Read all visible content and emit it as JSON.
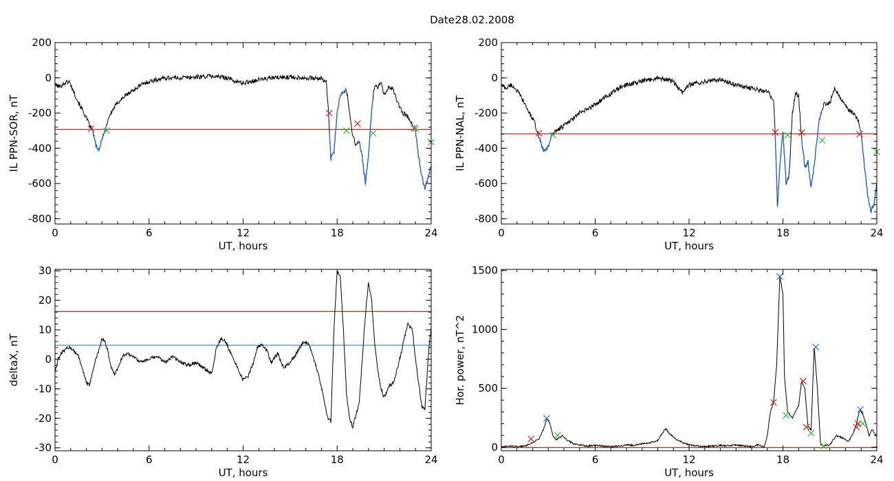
{
  "header": {
    "date_label": "Date:",
    "date_value": "28.02.2008"
  },
  "colors": {
    "signal": "#000000",
    "substorm": "#1f5fd6",
    "threshold_red": "#d62222",
    "threshold_blue": "#2a8fd6",
    "marker_red": "#d62222",
    "marker_green": "#2fbf2f",
    "marker_blue": "#2a6fe0"
  },
  "chart_data": [
    {
      "type": "line",
      "id": "il-sor",
      "xlabel": "UT, hours",
      "ylabel": "IL PPN-SOR, nT",
      "xlim": [
        0,
        24
      ],
      "ylim": [
        -830,
        200
      ],
      "xticks": [
        0,
        6,
        12,
        18,
        24
      ],
      "yticks": [
        -800,
        -600,
        -400,
        -200,
        0,
        200
      ],
      "xtick_labels": [
        "0",
        "6",
        "12",
        "18",
        "24"
      ],
      "ytick_labels": [
        "-800",
        "-600",
        "-400",
        "-200",
        "0",
        "200"
      ],
      "series": [
        {
          "x": [
            0,
            0.3,
            0.6,
            0.9,
            1.2,
            1.5,
            1.8,
            2.1,
            2.4,
            2.6,
            2.8,
            3.0,
            3.2,
            3.4,
            3.7,
            4.0,
            4.5,
            5.0,
            5.5,
            6.0,
            6.5,
            7.0,
            8.0,
            9.0,
            10.0,
            11.0,
            11.5,
            12.0,
            12.5,
            13.0,
            14.0,
            15.0,
            16.0,
            17.0,
            17.3,
            17.45,
            17.6,
            17.8,
            18.0,
            18.2,
            18.4,
            18.6,
            18.8,
            19.0,
            19.2,
            19.4,
            19.6,
            19.8,
            20.0,
            20.2,
            20.4,
            20.6,
            20.8,
            21.0,
            21.3,
            21.6,
            21.9,
            22.2,
            22.5,
            22.8,
            23.0,
            23.2,
            23.4,
            23.6,
            23.8,
            24.0
          ],
          "values": [
            -40,
            -50,
            -30,
            -20,
            -80,
            -140,
            -190,
            -250,
            -300,
            -380,
            -420,
            -340,
            -300,
            -230,
            -180,
            -140,
            -100,
            -70,
            -40,
            -20,
            -10,
            0,
            0,
            5,
            10,
            0,
            -20,
            -30,
            -20,
            -10,
            0,
            5,
            0,
            -5,
            -20,
            -200,
            -460,
            -420,
            -200,
            -100,
            -80,
            -70,
            -200,
            -330,
            -380,
            -360,
            -450,
            -600,
            -450,
            -180,
            -40,
            -50,
            -30,
            -100,
            -50,
            -70,
            -150,
            -200,
            -220,
            -260,
            -300,
            -450,
            -560,
            -630,
            -560,
            -500
          ]
        }
      ],
      "threshold": {
        "value": -293,
        "color": "threshold_red"
      },
      "substorm_segments": [
        [
          2.3,
          3.3
        ],
        [
          17.5,
          18.6
        ],
        [
          19.3,
          20.3
        ],
        [
          22.9,
          24.0
        ]
      ],
      "markers": [
        {
          "x": 2.3,
          "y": -290,
          "color": "marker_red"
        },
        {
          "x": 3.3,
          "y": -300,
          "color": "marker_green"
        },
        {
          "x": 17.5,
          "y": -200,
          "color": "marker_red"
        },
        {
          "x": 18.6,
          "y": -300,
          "color": "marker_green"
        },
        {
          "x": 19.3,
          "y": -260,
          "color": "marker_red"
        },
        {
          "x": 20.3,
          "y": -315,
          "color": "marker_green"
        },
        {
          "x": 22.9,
          "y": -285,
          "color": "marker_red"
        },
        {
          "x": 23.0,
          "y": -290,
          "color": "marker_green"
        },
        {
          "x": 24.0,
          "y": -365,
          "color": "marker_green"
        }
      ]
    },
    {
      "type": "line",
      "id": "il-nal",
      "xlabel": "UT, hours",
      "ylabel": "IL PPN-NAL, nT",
      "xlim": [
        0,
        24
      ],
      "ylim": [
        -830,
        200
      ],
      "xticks": [
        0,
        6,
        12,
        18,
        24
      ],
      "yticks": [
        -800,
        -600,
        -400,
        -200,
        0,
        200
      ],
      "xtick_labels": [
        "0",
        "6",
        "12",
        "18",
        "24"
      ],
      "ytick_labels": [
        "-800",
        "-600",
        "-400",
        "-200",
        "0",
        "200"
      ],
      "series": [
        {
          "x": [
            0,
            0.3,
            0.6,
            0.9,
            1.2,
            1.5,
            1.8,
            2.1,
            2.4,
            2.7,
            3.0,
            3.2,
            3.5,
            4.0,
            4.5,
            5.0,
            5.5,
            6.0,
            6.5,
            7.0,
            7.5,
            8.0,
            8.5,
            9.0,
            9.5,
            10.0,
            10.5,
            11.0,
            11.3,
            11.6,
            12.0,
            13.0,
            14.0,
            15.0,
            16.0,
            17.0,
            17.4,
            17.5,
            17.65,
            17.8,
            18.0,
            18.2,
            18.4,
            18.6,
            18.8,
            19.0,
            19.2,
            19.4,
            19.6,
            19.8,
            20.0,
            20.3,
            20.6,
            21.0,
            21.3,
            21.6,
            21.9,
            22.2,
            22.5,
            22.8,
            23.0,
            23.2,
            23.4,
            23.6,
            23.8,
            24.0
          ],
          "values": [
            -40,
            -60,
            -40,
            -60,
            -100,
            -150,
            -200,
            -250,
            -330,
            -420,
            -390,
            -330,
            -300,
            -270,
            -240,
            -200,
            -180,
            -150,
            -120,
            -90,
            -60,
            -40,
            -30,
            -20,
            -10,
            0,
            -10,
            -20,
            -60,
            -80,
            -40,
            -20,
            -10,
            -40,
            -60,
            -80,
            -120,
            -300,
            -740,
            -500,
            -300,
            -600,
            -550,
            -200,
            -90,
            -100,
            -350,
            -500,
            -480,
            -620,
            -500,
            -250,
            -150,
            -140,
            -60,
            -100,
            -150,
            -180,
            -200,
            -240,
            -300,
            -500,
            -650,
            -760,
            -720,
            -600
          ]
        }
      ],
      "threshold": {
        "value": -318,
        "color": "threshold_red"
      },
      "substorm_segments": [
        [
          2.4,
          3.3
        ],
        [
          17.5,
          18.3
        ],
        [
          19.2,
          20.5
        ],
        [
          22.9,
          24.0
        ]
      ],
      "markers": [
        {
          "x": 2.4,
          "y": -315,
          "color": "marker_red"
        },
        {
          "x": 3.3,
          "y": -325,
          "color": "marker_green"
        },
        {
          "x": 17.5,
          "y": -310,
          "color": "marker_red"
        },
        {
          "x": 18.3,
          "y": -325,
          "color": "marker_green"
        },
        {
          "x": 19.2,
          "y": -310,
          "color": "marker_red"
        },
        {
          "x": 20.5,
          "y": -355,
          "color": "marker_green"
        },
        {
          "x": 22.9,
          "y": -320,
          "color": "marker_red"
        },
        {
          "x": 24.0,
          "y": -420,
          "color": "marker_green"
        }
      ]
    },
    {
      "type": "line",
      "id": "deltax",
      "xlabel": "UT, hours",
      "ylabel": "deltaX, nT",
      "xlim": [
        0,
        24
      ],
      "ylim": [
        -31,
        30.5
      ],
      "xticks": [
        0,
        6,
        12,
        18,
        24
      ],
      "yticks": [
        -30,
        -20,
        -10,
        0,
        10,
        20,
        30
      ],
      "xtick_labels": [
        "0",
        "6",
        "12",
        "18",
        "24"
      ],
      "ytick_labels": [
        "-30",
        "-20",
        "-10",
        "0",
        "10",
        "20",
        "30"
      ],
      "series": [
        {
          "x": [
            0,
            0.2,
            0.4,
            0.6,
            0.8,
            1.0,
            1.2,
            1.5,
            1.8,
            2.0,
            2.2,
            2.4,
            2.6,
            2.8,
            3.0,
            3.2,
            3.4,
            3.6,
            3.8,
            4.0,
            4.3,
            4.6,
            5.0,
            5.5,
            6.0,
            6.5,
            7.0,
            7.5,
            8.0,
            8.5,
            9.0,
            9.5,
            10.0,
            10.3,
            10.6,
            10.9,
            11.2,
            11.5,
            11.8,
            12.0,
            12.3,
            12.6,
            12.9,
            13.2,
            13.5,
            13.8,
            14.2,
            14.6,
            15.0,
            15.3,
            15.6,
            15.9,
            16.2,
            16.5,
            16.8,
            17.1,
            17.4,
            17.6,
            17.8,
            18.0,
            18.2,
            18.4,
            18.6,
            18.8,
            19.0,
            19.2,
            19.4,
            19.6,
            19.8,
            20.0,
            20.2,
            20.4,
            20.6,
            20.8,
            21.0,
            21.3,
            21.6,
            21.9,
            22.2,
            22.5,
            22.8,
            23.0,
            23.2,
            23.4,
            23.6,
            23.8,
            24.0
          ],
          "values": [
            -4,
            0,
            2,
            3,
            4,
            4,
            3,
            1,
            -4,
            -8,
            -9,
            -4,
            0,
            3,
            7,
            6,
            2,
            -3,
            -5,
            -3,
            1,
            2,
            1,
            -1,
            0,
            1,
            -1,
            1,
            -1,
            -2,
            -1,
            -3,
            -5,
            4,
            7,
            6,
            2,
            -1,
            -5,
            -7,
            -6,
            -2,
            4,
            5,
            3,
            -1,
            2,
            -3,
            -1,
            1,
            4,
            6,
            5,
            0,
            -5,
            -12,
            -20,
            -21,
            10,
            30,
            28,
            10,
            -12,
            -20,
            -23,
            -19,
            -15,
            0,
            15,
            26,
            20,
            5,
            -4,
            -10,
            -13,
            -9,
            -8,
            -2,
            5,
            12,
            10,
            0,
            -8,
            -16,
            -17,
            0,
            11
          ]
        }
      ],
      "thresholds": [
        {
          "value": 16.2,
          "color": "threshold_red"
        },
        {
          "value": 4.8,
          "color": "threshold_blue"
        }
      ]
    },
    {
      "type": "line",
      "id": "hor-power",
      "xlabel": "UT, hours",
      "ylabel": "Hor. power, nT^2",
      "xlim": [
        0,
        24
      ],
      "ylim": [
        -30,
        1510
      ],
      "xticks": [
        0,
        6,
        12,
        18,
        24
      ],
      "yticks": [
        0,
        500,
        1000,
        1500
      ],
      "xtick_labels": [
        "0",
        "6",
        "12",
        "18",
        "24"
      ],
      "ytick_labels": [
        "0",
        "500",
        "1000",
        "1500"
      ],
      "series": [
        {
          "x": [
            0,
            0.5,
            1.0,
            1.5,
            2.0,
            2.4,
            2.7,
            2.9,
            3.1,
            3.3,
            3.5,
            3.7,
            3.9,
            4.2,
            4.6,
            5.0,
            5.5,
            6.0,
            6.5,
            7.0,
            7.5,
            8.0,
            8.5,
            9.0,
            9.5,
            10.0,
            10.3,
            10.5,
            10.7,
            10.9,
            11.2,
            11.6,
            12.0,
            12.5,
            13.0,
            13.5,
            14.0,
            14.5,
            15.0,
            15.5,
            16.0,
            16.4,
            16.8,
            17.0,
            17.2,
            17.4,
            17.6,
            17.8,
            18.0,
            18.1,
            18.3,
            18.6,
            19.0,
            19.2,
            19.4,
            19.6,
            19.8,
            20.0,
            20.2,
            20.4,
            20.6,
            21.0,
            21.4,
            21.8,
            22.2,
            22.5,
            22.7,
            22.9,
            23.1,
            23.3,
            23.5,
            23.7,
            24.0
          ],
          "values": [
            0,
            10,
            5,
            10,
            40,
            70,
            150,
            245,
            200,
            100,
            60,
            80,
            100,
            60,
            30,
            20,
            10,
            15,
            10,
            5,
            10,
            20,
            15,
            30,
            40,
            60,
            120,
            160,
            120,
            100,
            60,
            40,
            20,
            10,
            5,
            10,
            15,
            10,
            20,
            10,
            5,
            20,
            0,
            100,
            300,
            380,
            700,
            1450,
            1300,
            600,
            300,
            250,
            350,
            560,
            500,
            180,
            150,
            850,
            500,
            30,
            10,
            20,
            100,
            80,
            50,
            120,
            200,
            320,
            280,
            200,
            100,
            150,
            90
          ]
        }
      ],
      "threshold": {
        "value": -3,
        "color": "threshold_red"
      },
      "markers": [
        {
          "x": 1.9,
          "y": 70,
          "color": "marker_red"
        },
        {
          "x": 2.9,
          "y": 245,
          "color": "marker_blue"
        },
        {
          "x": 3.6,
          "y": 100,
          "color": "marker_green"
        },
        {
          "x": 17.4,
          "y": 380,
          "color": "marker_red"
        },
        {
          "x": 17.8,
          "y": 1450,
          "color": "marker_blue"
        },
        {
          "x": 18.2,
          "y": 270,
          "color": "marker_green"
        },
        {
          "x": 19.3,
          "y": 560,
          "color": "marker_red"
        },
        {
          "x": 19.5,
          "y": 170,
          "color": "marker_red"
        },
        {
          "x": 19.8,
          "y": 120,
          "color": "marker_green"
        },
        {
          "x": 20.1,
          "y": 850,
          "color": "marker_blue"
        },
        {
          "x": 20.6,
          "y": 10,
          "color": "marker_green"
        },
        {
          "x": 22.7,
          "y": 170,
          "color": "marker_red"
        },
        {
          "x": 22.8,
          "y": 200,
          "color": "marker_red"
        },
        {
          "x": 22.95,
          "y": 320,
          "color": "marker_blue"
        },
        {
          "x": 23.1,
          "y": 200,
          "color": "marker_green"
        }
      ]
    }
  ]
}
